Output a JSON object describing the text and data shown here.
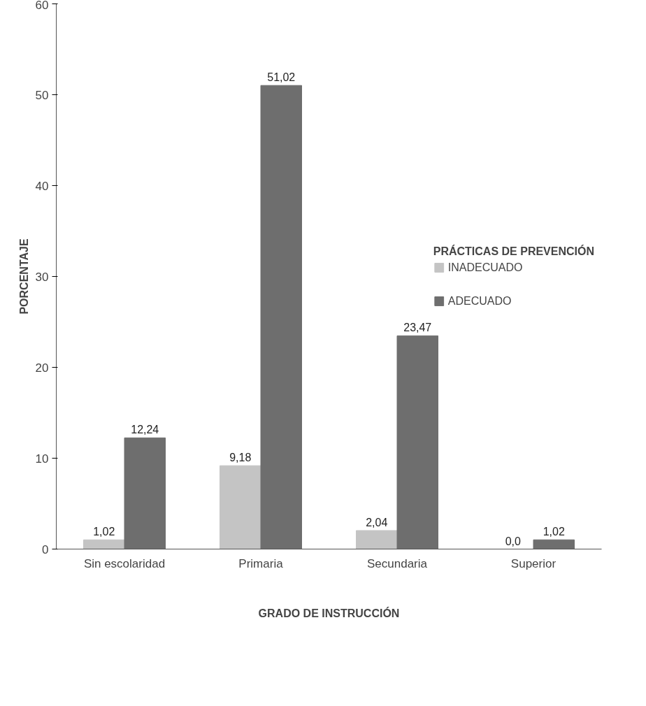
{
  "chart_data": {
    "type": "bar",
    "xlabel": "GRADO DE INSTRUCCIÓN",
    "ylabel": "PORCENTAJE",
    "legend_title": "PRÁCTICAS DE PREVENCIÓN",
    "categories": [
      "Sin escolaridad",
      "Primaria",
      "Secundaria",
      "Superior"
    ],
    "series": [
      {
        "name": "INADECUADO",
        "color": "#c4c4c4",
        "values": [
          1.02,
          9.18,
          2.04,
          0.0
        ],
        "value_labels": [
          "1,02",
          "9,18",
          "2,04",
          "0,0"
        ]
      },
      {
        "name": "ADECUADO",
        "color": "#6e6e6e",
        "values": [
          12.24,
          51.02,
          23.47,
          1.02
        ],
        "value_labels": [
          "12,24",
          "51,02",
          "23,47",
          "1,02"
        ]
      }
    ],
    "ylim": [
      0,
      60
    ],
    "yticks": [
      0,
      10,
      20,
      30,
      40,
      50,
      60
    ],
    "grid": false,
    "legend": "right"
  }
}
